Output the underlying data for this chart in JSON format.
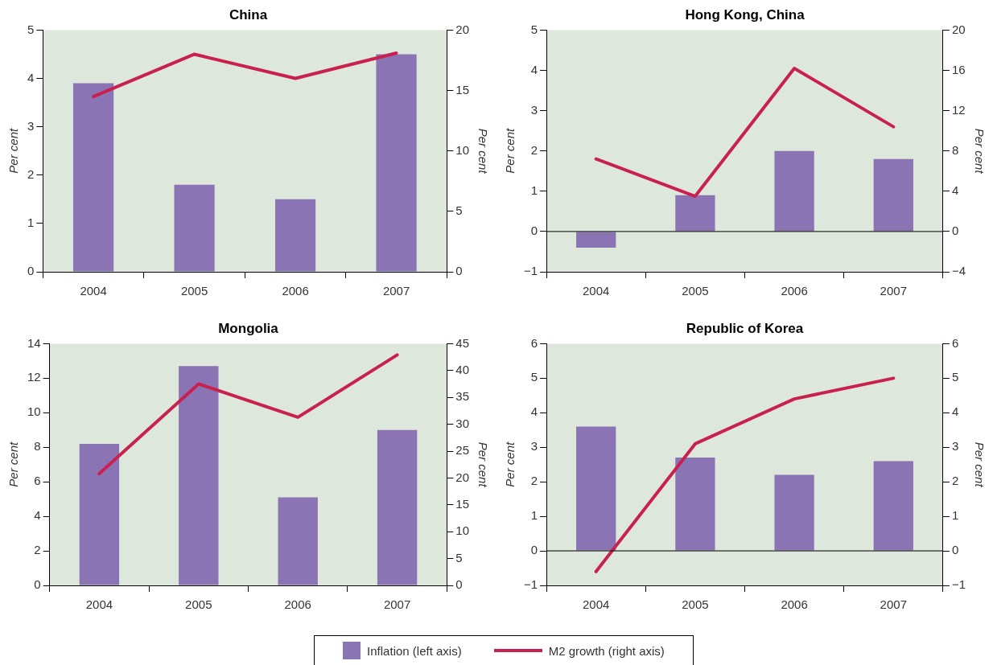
{
  "chart_data": [
    {
      "type": "bar",
      "title": "China",
      "categories": [
        "2004",
        "2005",
        "2006",
        "2007"
      ],
      "ylabel": "Per cent",
      "y2label": "Per cent",
      "ylim": [
        0,
        5
      ],
      "yticks": [
        0,
        1,
        2,
        3,
        4,
        5
      ],
      "y2lim": [
        0,
        20
      ],
      "y2ticks": [
        0,
        5,
        10,
        15,
        20
      ],
      "legend": "bottom",
      "grid": false,
      "series": [
        {
          "name": "Inflation (left axis)",
          "color": "#8a74b4",
          "values": [
            3.9,
            1.8,
            1.5,
            4.5
          ]
        },
        {
          "name": "M2 growth (right axis)",
          "type": "line",
          "axis": "y2",
          "color": "#c8204f",
          "values": [
            14.5,
            18.0,
            16.0,
            18.1
          ]
        }
      ]
    },
    {
      "type": "bar",
      "title": "Hong Kong, China",
      "categories": [
        "2004",
        "2005",
        "2006",
        "2007"
      ],
      "ylabel": "Per cent",
      "y2label": "Per cent",
      "ylim": [
        -1,
        5
      ],
      "yticks": [
        {
          "value": -1,
          "label": "−1"
        },
        0,
        1,
        2,
        3,
        4,
        5
      ],
      "y2lim": [
        -4,
        20
      ],
      "y2ticks": [
        {
          "value": -4,
          "label": "−4"
        },
        0,
        4,
        8,
        12,
        16,
        20
      ],
      "grid": false,
      "ref_lines": [
        {
          "axis": "y",
          "value": 0,
          "color": "#000000"
        }
      ],
      "series": [
        {
          "color": "#8a74b4",
          "values": [
            -0.4,
            0.9,
            2.0,
            1.8
          ]
        },
        {
          "type": "line",
          "axis": "y2",
          "color": "#c8204f",
          "values": [
            7.2,
            3.5,
            16.2,
            10.4
          ]
        }
      ]
    },
    {
      "type": "bar",
      "title": "Mongolia",
      "categories": [
        "2004",
        "2005",
        "2006",
        "2007"
      ],
      "ylabel": "Per cent",
      "y2label": "Per cent",
      "ylim": [
        0,
        14
      ],
      "yticks": [
        0,
        2,
        4,
        6,
        8,
        10,
        12,
        14
      ],
      "y2lim": [
        0,
        45
      ],
      "y2ticks": [
        0,
        5,
        10,
        15,
        20,
        25,
        30,
        35,
        40,
        45
      ],
      "grid": false,
      "series": [
        {
          "color": "#8a74b4",
          "values": [
            8.2,
            12.7,
            5.1,
            9.0
          ]
        },
        {
          "type": "line",
          "axis": "y2",
          "color": "#c8204f",
          "values": [
            20.8,
            37.5,
            31.3,
            42.9
          ]
        }
      ]
    },
    {
      "type": "bar",
      "title": "Republic of Korea",
      "categories": [
        "2004",
        "2005",
        "2006",
        "2007"
      ],
      "ylabel": "Per cent",
      "y2label": "Per cent",
      "ylim": [
        -1,
        6
      ],
      "yticks": [
        {
          "value": -1,
          "label": "−1"
        },
        0,
        1,
        2,
        3,
        4,
        5,
        6
      ],
      "y2lim": [
        -1,
        6
      ],
      "y2ticks": [
        {
          "value": -1,
          "label": "−1"
        },
        0,
        1,
        2,
        3,
        4,
        5,
        6
      ],
      "grid": false,
      "ref_lines": [
        {
          "axis": "y",
          "value": 0,
          "color": "#000000"
        }
      ],
      "series": [
        {
          "color": "#8a74b4",
          "values": [
            3.6,
            2.7,
            2.2,
            2.6
          ]
        },
        {
          "type": "line",
          "axis": "y2",
          "color": "#c8204f",
          "values": [
            -0.6,
            3.1,
            4.4,
            5.0
          ]
        }
      ]
    }
  ]
}
